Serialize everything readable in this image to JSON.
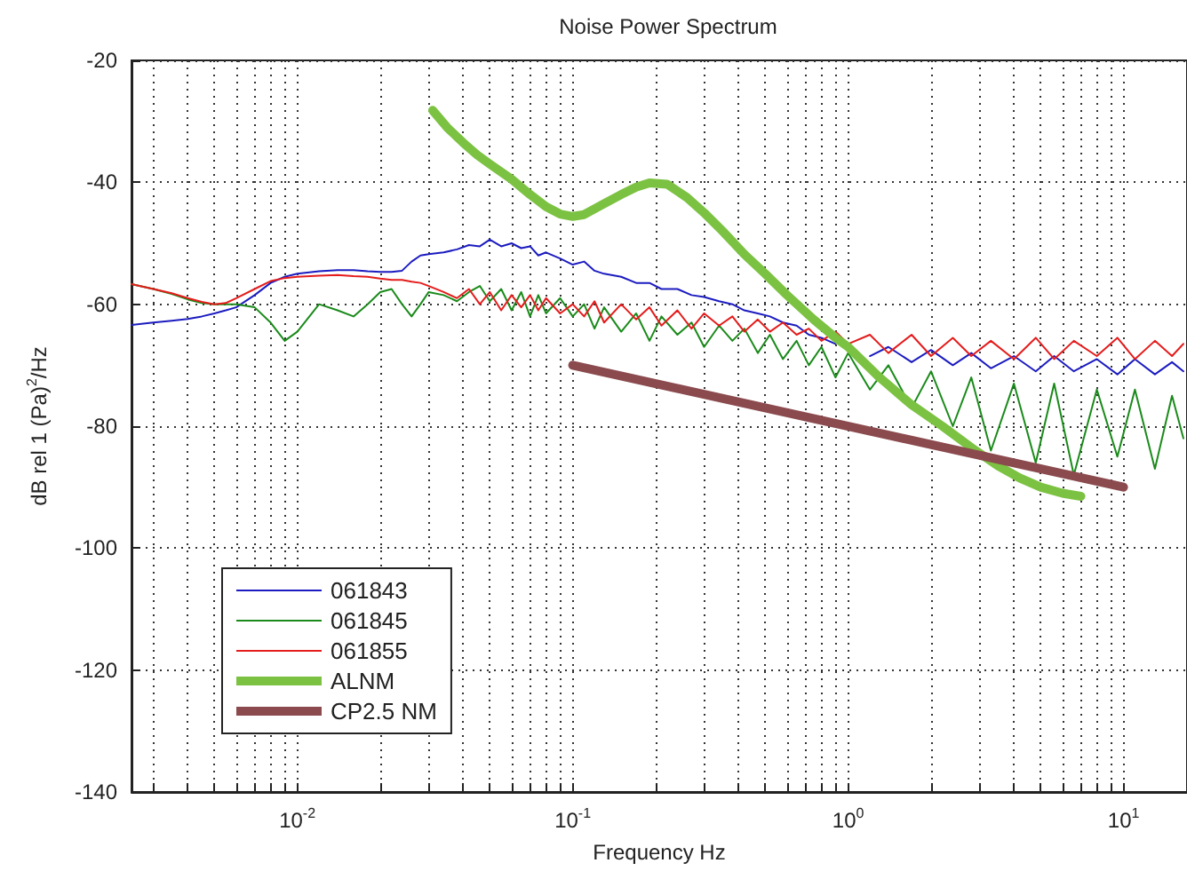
{
  "chart_data": {
    "type": "line",
    "title": "Noise Power Spectrum",
    "xlabel": "Frequency Hz",
    "ylabel": "dB rel 1 (Pa)$^{2}$/Hz",
    "x": [
      0.0025,
      0.003,
      0.0035,
      0.004,
      0.0045,
      0.005,
      0.0055,
      0.006,
      0.007,
      0.008,
      0.009,
      0.01,
      0.012,
      0.014,
      0.016,
      0.018,
      0.02,
      0.022,
      0.024,
      0.026,
      0.028,
      0.03,
      0.034,
      0.038,
      0.042,
      0.046,
      0.05,
      0.055,
      0.06,
      0.065,
      0.07,
      0.075,
      0.08,
      0.09,
      0.1,
      0.11,
      0.12,
      0.13,
      0.15,
      0.17,
      0.19,
      0.21,
      0.24,
      0.27,
      0.3,
      0.34,
      0.38,
      0.42,
      0.47,
      0.52,
      0.58,
      0.65,
      0.72,
      0.8,
      0.9,
      1,
      1.2,
      1.4,
      1.7,
      2,
      2.4,
      2.8,
      3.3,
      4,
      4.8,
      5.6,
      6.6,
      8,
      9.5,
      11,
      13,
      15,
      16.5
    ],
    "series": [
      {
        "name": "061843",
        "color": "#1c1cc0",
        "values": [
          -63.4,
          -63,
          -62.7,
          -62.4,
          -62,
          -61.5,
          -61,
          -60.5,
          -58.5,
          -56.5,
          -55.5,
          -55,
          -54.6,
          -54.4,
          -54.4,
          -54.6,
          -54.7,
          -54.7,
          -54.5,
          -53,
          -52,
          -51.8,
          -51.5,
          -51,
          -50.3,
          -50.5,
          -49.4,
          -50.5,
          -50,
          -50.8,
          -50.5,
          -52,
          -51.5,
          -52.5,
          -53.5,
          -53,
          -54.5,
          -55,
          -55.5,
          -56.5,
          -56.5,
          -57.5,
          -57.5,
          -58.5,
          -58.8,
          -59.5,
          -60,
          -61,
          -61.5,
          -62,
          -63,
          -63.5,
          -65,
          -65.5,
          -66.5,
          null,
          -68.5,
          -67,
          -69.5,
          -67.5,
          -70,
          -68,
          -70.5,
          -68.5,
          -71,
          -68.5,
          -71,
          -69,
          -71.5,
          -69,
          -71.5,
          -69.5,
          -71
        ]
      },
      {
        "name": "061845",
        "color": "#1a8a1a",
        "values": [
          -56.7,
          -57.5,
          -58.3,
          -59.2,
          -59.8,
          -60,
          -60,
          -60,
          -60.5,
          -63,
          -66,
          -64.5,
          -60,
          -61,
          -62,
          -60,
          -58,
          -57.5,
          -60,
          -62,
          -60,
          -58,
          -58.5,
          -59.5,
          -58,
          -57,
          -59.5,
          -57.5,
          -61,
          -58,
          -62,
          -58.5,
          -61.5,
          -59,
          -62,
          -60,
          -64,
          -60.5,
          -64.5,
          -61.5,
          -66,
          -62,
          -65,
          -63,
          -67,
          -63.5,
          -66,
          -64,
          -68,
          -65,
          -69,
          -66,
          -70,
          -67,
          -72,
          -68,
          -74,
          -70,
          -77,
          -71,
          -80,
          -72,
          -84,
          -73,
          -86,
          -73,
          -88,
          -74,
          -85,
          -74,
          -87,
          -75,
          -82
        ]
      },
      {
        "name": "061855",
        "color": "#e41c1c",
        "values": [
          -56.7,
          -57.5,
          -58.2,
          -59,
          -59.6,
          -60,
          -59.8,
          -59,
          -57.5,
          -56.2,
          -55.7,
          -55.5,
          -55.3,
          -55.2,
          -55.4,
          -55.5,
          -55.8,
          -56,
          -56,
          -56.3,
          -56.5,
          -57,
          -58,
          -59,
          -57.5,
          -60,
          -58,
          -61,
          -58.5,
          -60.5,
          -58.5,
          -61,
          -59,
          -61.5,
          -60,
          -62,
          -59.5,
          -63,
          -60,
          -62.5,
          -60.5,
          -63.5,
          -61,
          -64,
          -61.5,
          -63.5,
          -62,
          -64.5,
          -62.5,
          -64.5,
          -63,
          -65,
          -64,
          -66,
          -64.5,
          -66.5,
          -65,
          -68,
          -65,
          -68.5,
          -65.5,
          -68.5,
          -66,
          -69,
          -65.5,
          -69,
          -66,
          -68.5,
          -65.5,
          -69,
          -66,
          -68.5,
          -66.5
        ]
      },
      {
        "name": "ALNM",
        "color": "#7cc242",
        "x": [
          0.031,
          0.035,
          0.04,
          0.045,
          0.05,
          0.06,
          0.07,
          0.08,
          0.09,
          0.1,
          0.11,
          0.13,
          0.15,
          0.17,
          0.19,
          0.22,
          0.26,
          0.3,
          0.35,
          0.42,
          0.5,
          0.6,
          0.75,
          0.9,
          1,
          1.3,
          1.7,
          2.2,
          2.8,
          3.5,
          4.2,
          5,
          6,
          7
        ],
        "values": [
          -28.2,
          -31,
          -33.5,
          -35.5,
          -37,
          -39.5,
          -42,
          -44,
          -45.2,
          -45.6,
          -45.3,
          -43.5,
          -42,
          -40.8,
          -40.1,
          -40.3,
          -42.5,
          -45,
          -48,
          -51.8,
          -55,
          -58.5,
          -62.5,
          -65.5,
          -67,
          -72,
          -76.5,
          -80,
          -83.5,
          -86.5,
          -88.5,
          -90,
          -91,
          -91.5
        ]
      },
      {
        "name": "CP2.5 NM",
        "color": "#8b4a4e",
        "x": [
          0.1,
          10
        ],
        "values": [
          -70,
          -90
        ]
      }
    ],
    "xlim": [
      0.0025,
      17
    ],
    "ylim": [
      -140,
      -20
    ],
    "xticks": [
      {
        "value": 0.003,
        "label": null
      },
      {
        "value": 0.004,
        "label": null
      },
      {
        "value": 0.005,
        "label": null
      },
      {
        "value": 0.006,
        "label": null
      },
      {
        "value": 0.007,
        "label": null
      },
      {
        "value": 0.008,
        "label": null
      },
      {
        "value": 0.009,
        "label": null
      },
      {
        "value": 0.01,
        "label": "10$^{-2}$"
      },
      {
        "value": 0.02,
        "label": null
      },
      {
        "value": 0.03,
        "label": null
      },
      {
        "value": 0.04,
        "label": null
      },
      {
        "value": 0.05,
        "label": null
      },
      {
        "value": 0.06,
        "label": null
      },
      {
        "value": 0.07,
        "label": null
      },
      {
        "value": 0.08,
        "label": null
      },
      {
        "value": 0.09,
        "label": null
      },
      {
        "value": 0.1,
        "label": "10$^{-1}$"
      },
      {
        "value": 0.2,
        "label": null
      },
      {
        "value": 0.3,
        "label": null
      },
      {
        "value": 0.4,
        "label": null
      },
      {
        "value": 0.5,
        "label": null
      },
      {
        "value": 0.6,
        "label": null
      },
      {
        "value": 0.7,
        "label": null
      },
      {
        "value": 0.8,
        "label": null
      },
      {
        "value": 0.9,
        "label": null
      },
      {
        "value": 1,
        "label": "10$^{0}$"
      },
      {
        "value": 2,
        "label": null
      },
      {
        "value": 3,
        "label": null
      },
      {
        "value": 4,
        "label": null
      },
      {
        "value": 5,
        "label": null
      },
      {
        "value": 6,
        "label": null
      },
      {
        "value": 7,
        "label": null
      },
      {
        "value": 8,
        "label": null
      },
      {
        "value": 9,
        "label": null
      },
      {
        "value": 10,
        "label": "10$^{1}$"
      }
    ],
    "yticks": [
      -140,
      -120,
      -100,
      -80,
      -60,
      -40,
      -20
    ],
    "log": "x",
    "grid": true,
    "legend": "bottom left",
    "marker": "none"
  }
}
